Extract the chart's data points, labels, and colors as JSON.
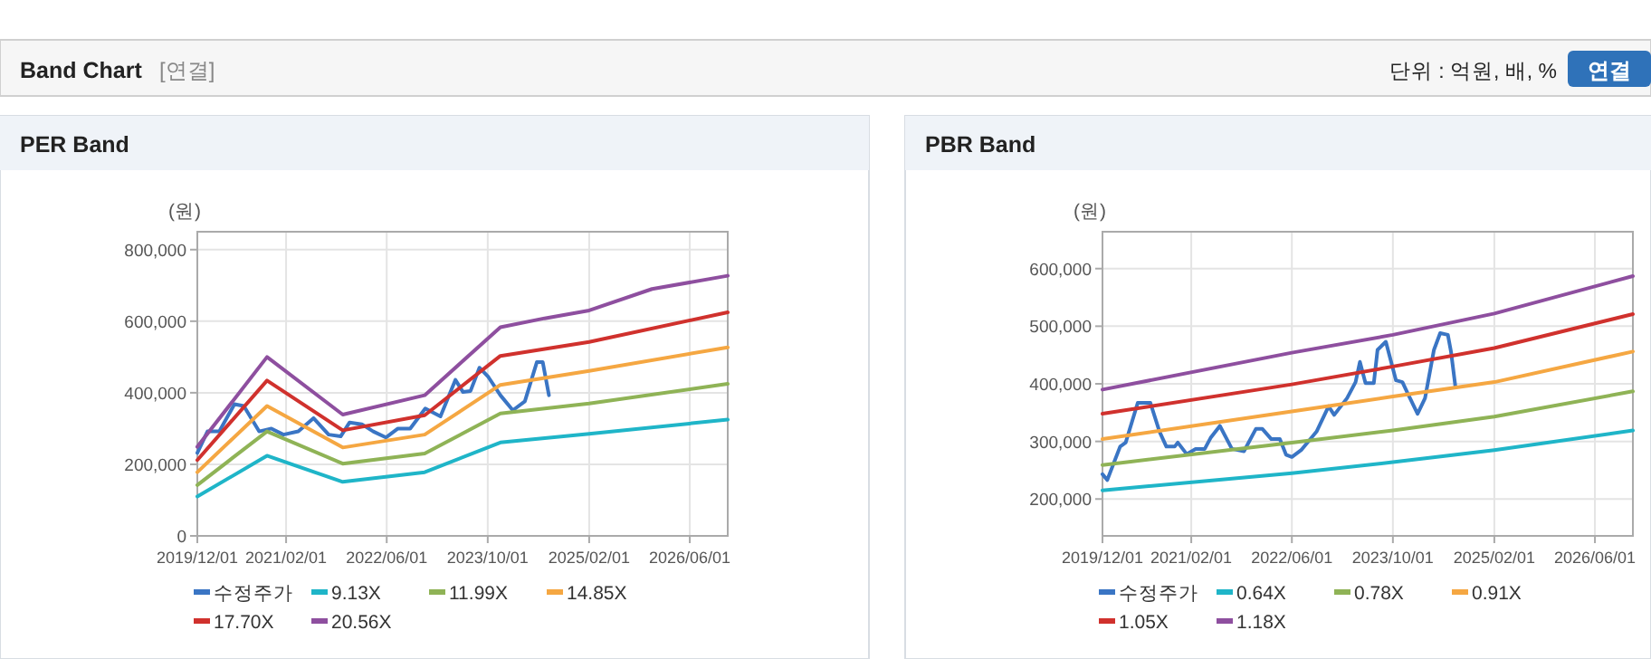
{
  "chart_data": [
    {
      "type": "other",
      "title": "Band Chart",
      "annotations": [
        "[연결]",
        "단위 : 억원, 배, %",
        "연결"
      ]
    },
    {
      "type": "line",
      "title": "PER Band",
      "ylabel": "(원)",
      "xlim": [
        "2019-12-01",
        "2026-12-01"
      ],
      "ylim": [
        0,
        850000
      ],
      "xticks": [
        {
          "value": "2019-12-01",
          "label": "2019/12/01"
        },
        {
          "value": "2021-02-01",
          "label": "2021/02/01"
        },
        {
          "value": "2022-06-01",
          "label": "2022/06/01"
        },
        {
          "value": "2023-10-01",
          "label": "2023/10/01"
        },
        {
          "value": "2025-02-01",
          "label": "2025/02/01"
        },
        {
          "value": "2026-06-01",
          "label": "2026/06/01"
        }
      ],
      "yticks": [
        0,
        {
          "value": 200000,
          "label": "200,000"
        },
        {
          "value": 400000,
          "label": "400,000"
        },
        {
          "value": 600000,
          "label": "600,000"
        },
        {
          "value": 800000,
          "label": "800,000"
        }
      ],
      "grid": true,
      "legend": "bottom",
      "marker": "none",
      "line_style": "solid",
      "series": [
        {
          "name": "수정주가",
          "color": "#3a75c4",
          "x": [
            "2019-12-01",
            "2020-01-19",
            "2020-03-16",
            "2020-05-28",
            "2020-07-12",
            "2020-09-24",
            "2020-11-22",
            "2021-01-19",
            "2021-04-01",
            "2021-06-13",
            "2021-08-25",
            "2021-10-22",
            "2021-12-04",
            "2022-02-01",
            "2022-03-28",
            "2022-05-28",
            "2022-07-25",
            "2022-09-22",
            "2022-12-04",
            "2023-02-15",
            "2023-04-28",
            "2023-06-04",
            "2023-07-10",
            "2023-08-22",
            "2023-10-04",
            "2023-12-01",
            "2024-01-30",
            "2024-03-28",
            "2024-05-25",
            "2024-06-22",
            "2024-07-22"
          ],
          "values": [
            232000,
            292000,
            292000,
            368000,
            363000,
            292000,
            300000,
            283000,
            292000,
            329000,
            283000,
            278000,
            317000,
            312000,
            292000,
            275000,
            300000,
            300000,
            356000,
            334000,
            436000,
            402000,
            405000,
            470000,
            444000,
            393000,
            351000,
            376000,
            486000,
            486000,
            393000
          ]
        },
        {
          "name": "9.13X",
          "color": "#1fb5c8",
          "x": [
            "2019-12-01",
            "2020-11-01",
            "2021-11-01",
            "2022-12-01",
            "2023-12-01",
            "2025-02-01",
            "2026-12-01"
          ],
          "values": [
            110000,
            224000,
            151000,
            178000,
            261000,
            285000,
            325000
          ]
        },
        {
          "name": "11.99X",
          "color": "#8fb356",
          "x": [
            "2019-12-01",
            "2020-11-01",
            "2021-11-01",
            "2022-12-01",
            "2023-12-01",
            "2025-02-01",
            "2026-12-01"
          ],
          "values": [
            142000,
            292000,
            202000,
            230000,
            342000,
            370000,
            425000
          ]
        },
        {
          "name": "14.85X",
          "color": "#f5a742",
          "x": [
            "2019-12-01",
            "2020-11-01",
            "2021-11-01",
            "2022-12-01",
            "2023-12-01",
            "2025-02-01",
            "2026-12-01"
          ],
          "values": [
            178000,
            363000,
            247000,
            283000,
            422000,
            461000,
            527000
          ]
        },
        {
          "name": "17.70X",
          "color": "#d0312d",
          "x": [
            "2019-12-01",
            "2020-11-01",
            "2021-11-01",
            "2022-12-01",
            "2023-12-01",
            "2025-02-01",
            "2026-12-01"
          ],
          "values": [
            212000,
            434000,
            295000,
            337000,
            503000,
            542000,
            625000
          ]
        },
        {
          "name": "20.56X",
          "color": "#8e4f9f",
          "x": [
            "2019-12-01",
            "2020-11-01",
            "2021-11-01",
            "2022-12-01",
            "2023-12-01",
            "2024-07-01",
            "2025-02-01",
            "2025-12-01",
            "2026-12-01"
          ],
          "values": [
            249000,
            500000,
            339000,
            393000,
            583000,
            608000,
            630000,
            690000,
            727000
          ]
        }
      ]
    },
    {
      "type": "line",
      "title": "PBR Band",
      "ylabel": "(원)",
      "xlim": [
        "2019-12-01",
        "2026-12-01"
      ],
      "ylim": [
        136000,
        664000
      ],
      "xticks": [
        {
          "value": "2019-12-01",
          "label": "2019/12/01"
        },
        {
          "value": "2021-02-01",
          "label": "2021/02/01"
        },
        {
          "value": "2022-06-01",
          "label": "2022/06/01"
        },
        {
          "value": "2023-10-01",
          "label": "2023/10/01"
        },
        {
          "value": "2025-02-01",
          "label": "2025/02/01"
        },
        {
          "value": "2026-06-01",
          "label": "2026/06/01"
        }
      ],
      "yticks": [
        {
          "value": 200000,
          "label": "200,000"
        },
        {
          "value": 300000,
          "label": "300,000"
        },
        {
          "value": 400000,
          "label": "400,000"
        },
        {
          "value": 500000,
          "label": "500,000"
        },
        {
          "value": 600000,
          "label": "600,000"
        }
      ],
      "grid": true,
      "legend": "bottom",
      "marker": "none",
      "line_style": "solid",
      "series": [
        {
          "name": "수정주가",
          "color": "#3a75c4",
          "x": [
            "2019-12-01",
            "2019-12-24",
            "2020-02-24",
            "2020-03-22",
            "2020-05-19",
            "2020-07-19",
            "2020-09-01",
            "2020-10-04",
            "2020-11-13",
            "2020-11-28",
            "2021-01-10",
            "2021-02-22",
            "2021-04-07",
            "2021-05-05",
            "2021-06-19",
            "2021-08-16",
            "2021-10-13",
            "2021-12-10",
            "2022-01-09",
            "2022-02-22",
            "2022-04-04",
            "2022-05-04",
            "2022-06-01",
            "2022-07-16",
            "2022-09-28",
            "2022-11-25",
            "2022-12-22",
            "2023-02-22",
            "2023-04-04",
            "2023-04-25",
            "2023-05-22",
            "2023-07-01",
            "2023-07-19",
            "2023-08-28",
            "2023-10-16",
            "2023-11-16",
            "2023-12-13",
            "2024-01-28",
            "2024-03-04",
            "2024-04-16",
            "2024-05-16",
            "2024-06-22",
            "2024-07-07",
            "2024-07-28"
          ],
          "values": [
            243000,
            233000,
            291000,
            298000,
            367000,
            367000,
            317000,
            291000,
            291000,
            298000,
            278000,
            287000,
            287000,
            306000,
            327000,
            287000,
            283000,
            322000,
            322000,
            304000,
            304000,
            277000,
            273000,
            285000,
            317000,
            361000,
            346000,
            375000,
            403000,
            438000,
            401000,
            401000,
            459000,
            473000,
            406000,
            403000,
            382000,
            348000,
            375000,
            459000,
            488000,
            485000,
            456000,
            396000
          ]
        },
        {
          "name": "0.64X",
          "color": "#1fb5c8",
          "x": [
            "2019-12-01",
            "2022-06-01",
            "2023-10-01",
            "2025-02-01",
            "2026-12-01"
          ],
          "values": [
            215000,
            245000,
            264000,
            285000,
            319000
          ]
        },
        {
          "name": "0.78X",
          "color": "#8fb356",
          "x": [
            "2019-12-01",
            "2022-06-01",
            "2023-10-01",
            "2025-02-01",
            "2026-12-01"
          ],
          "values": [
            259000,
            298000,
            319000,
            343000,
            387000
          ]
        },
        {
          "name": "0.91X",
          "color": "#f5a742",
          "x": [
            "2019-12-01",
            "2022-06-01",
            "2023-10-01",
            "2025-02-01",
            "2026-12-01"
          ],
          "values": [
            304000,
            352000,
            378000,
            403000,
            456000
          ]
        },
        {
          "name": "1.05X",
          "color": "#d0312d",
          "x": [
            "2019-12-01",
            "2022-06-01",
            "2023-10-01",
            "2025-02-01",
            "2026-12-01"
          ],
          "values": [
            348000,
            399000,
            430000,
            462000,
            521000
          ]
        },
        {
          "name": "1.18X",
          "color": "#8e4f9f",
          "x": [
            "2019-12-01",
            "2022-06-01",
            "2023-10-01",
            "2025-02-01",
            "2026-12-01"
          ],
          "values": [
            390000,
            454000,
            485000,
            522000,
            587000
          ]
        }
      ]
    }
  ]
}
